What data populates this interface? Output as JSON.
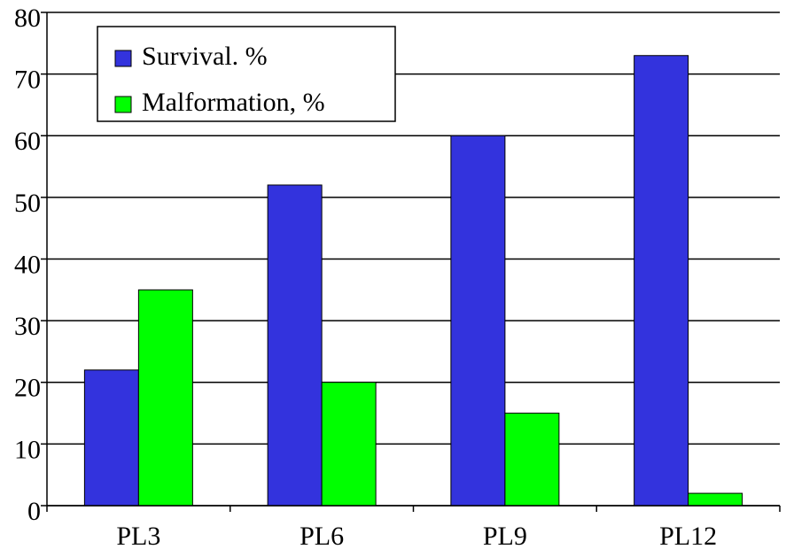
{
  "chart_data": {
    "type": "bar",
    "categories": [
      "PL3",
      "PL6",
      "PL9",
      "PL12"
    ],
    "series": [
      {
        "name": "Survival. %",
        "color": "#3333dd",
        "values": [
          22,
          52,
          60,
          73
        ]
      },
      {
        "name": "Malformation, %",
        "color": "#00ff00",
        "values": [
          35,
          20,
          15,
          2
        ]
      }
    ],
    "ylim": [
      0,
      80
    ],
    "yticks": [
      0,
      10,
      20,
      30,
      40,
      50,
      60,
      70,
      80
    ],
    "grid": true,
    "legend": "upper left"
  }
}
